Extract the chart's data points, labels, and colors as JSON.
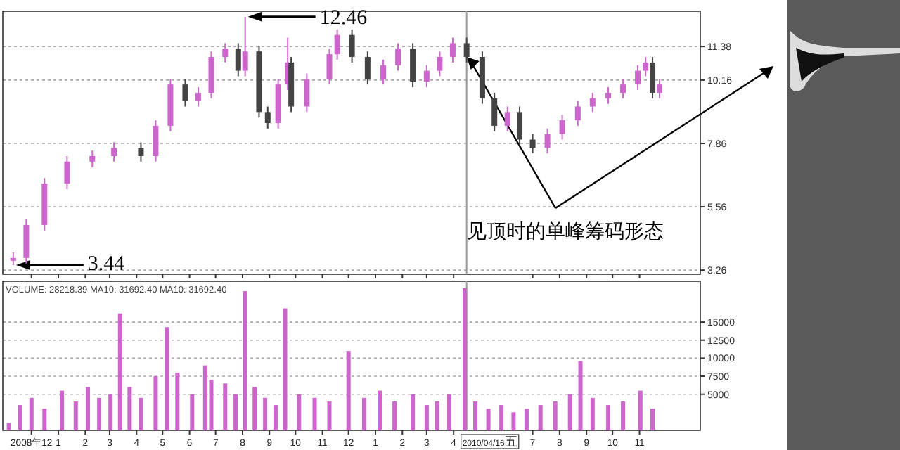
{
  "chart_data": [
    {
      "type": "candlestick",
      "xlim": [
        "2008-10-29",
        "2011-01-10"
      ],
      "ylim": [
        3.11,
        12.66
      ],
      "yticks": [
        3.26,
        5.56,
        7.86,
        10.16,
        11.38
      ],
      "grid": "y",
      "tick_labels": "y",
      "xticks": [
        {
          "value": "2008-12-01",
          "label": null
        },
        {
          "value": "2009-01-01",
          "label": null
        },
        {
          "value": "2009-02-01",
          "label": null
        },
        {
          "value": "2009-03-01",
          "label": null
        },
        {
          "value": "2009-04-01",
          "label": null
        },
        {
          "value": "2009-05-01",
          "label": null
        },
        {
          "value": "2009-06-01",
          "label": null
        },
        {
          "value": "2009-07-01",
          "label": null
        },
        {
          "value": "2009-08-01",
          "label": null
        },
        {
          "value": "2009-09-01",
          "label": null
        },
        {
          "value": "2009-10-01",
          "label": null
        },
        {
          "value": "2009-11-01",
          "label": null
        },
        {
          "value": "2009-12-01",
          "label": null
        },
        {
          "value": "2010-01-01",
          "label": null
        },
        {
          "value": "2010-02-01",
          "label": null
        },
        {
          "value": "2010-03-01",
          "label": null
        },
        {
          "value": "2010-04-01",
          "label": null
        },
        {
          "value": "2010-07-01",
          "label": null
        },
        {
          "value": "2010-08-01",
          "label": null
        },
        {
          "value": "2010-09-01",
          "label": null
        },
        {
          "value": "2010-10-01",
          "label": null
        },
        {
          "value": "2010-11-01",
          "label": null
        }
      ],
      "x": [
        "2008-11-10",
        "2008-11-25",
        "2008-12-16",
        "2009-01-11",
        "2009-02-09",
        "2009-03-06",
        "2009-04-06",
        "2009-04-23",
        "2009-05-10",
        "2009-05-27",
        "2009-06-11",
        "2009-06-26",
        "2009-07-12",
        "2009-07-27",
        "2009-08-04",
        "2009-08-20",
        "2009-08-30",
        "2009-09-11",
        "2009-09-22",
        "2009-09-26",
        "2009-10-14",
        "2009-11-09",
        "2009-11-18",
        "2009-12-05",
        "2009-12-23",
        "2010-01-10",
        "2010-01-27",
        "2010-02-13",
        "2010-03-01",
        "2010-03-16",
        "2010-03-31",
        "2010-04-16",
        "2010-05-04",
        "2010-05-18",
        "2010-06-02",
        "2010-06-16",
        "2010-07-01",
        "2010-07-18",
        "2010-08-04",
        "2010-08-22",
        "2010-09-08",
        "2010-09-26",
        "2010-10-13",
        "2010-10-30",
        "2010-11-08",
        "2010-11-16",
        "2010-11-24"
      ],
      "ohlc": [
        [
          3.6,
          3.9,
          3.44,
          3.7
        ],
        [
          3.7,
          5.1,
          3.5,
          4.9
        ],
        [
          4.9,
          6.6,
          4.7,
          6.4
        ],
        [
          6.4,
          7.4,
          6.2,
          7.2
        ],
        [
          7.2,
          7.6,
          7.0,
          7.4
        ],
        [
          7.4,
          7.9,
          7.2,
          7.7
        ],
        [
          7.7,
          7.9,
          7.2,
          7.4
        ],
        [
          7.4,
          8.7,
          7.2,
          8.5
        ],
        [
          8.5,
          10.2,
          8.3,
          10.0
        ],
        [
          10.0,
          10.2,
          9.2,
          9.4
        ],
        [
          9.4,
          9.9,
          9.2,
          9.7
        ],
        [
          9.7,
          11.2,
          9.5,
          11.0
        ],
        [
          11.0,
          11.5,
          10.8,
          11.3
        ],
        [
          11.3,
          11.5,
          10.3,
          10.5
        ],
        [
          10.5,
          12.46,
          10.3,
          11.2
        ],
        [
          11.2,
          11.4,
          8.8,
          9.0
        ],
        [
          9.0,
          9.2,
          8.4,
          8.6
        ],
        [
          8.6,
          10.2,
          8.4,
          10.0
        ],
        [
          10.0,
          11.7,
          9.8,
          10.8
        ],
        [
          10.8,
          11.0,
          9.0,
          9.2
        ],
        [
          9.2,
          10.4,
          9.0,
          10.2
        ],
        [
          10.2,
          11.3,
          10.0,
          11.1
        ],
        [
          11.1,
          12.0,
          10.9,
          11.8
        ],
        [
          11.8,
          12.0,
          10.8,
          11.0
        ],
        [
          11.0,
          11.2,
          10.0,
          10.2
        ],
        [
          10.2,
          10.9,
          10.0,
          10.7
        ],
        [
          10.7,
          11.5,
          10.5,
          11.3
        ],
        [
          11.3,
          11.5,
          9.9,
          10.1
        ],
        [
          10.1,
          10.7,
          9.9,
          10.5
        ],
        [
          10.5,
          11.2,
          10.3,
          11.0
        ],
        [
          11.0,
          11.7,
          10.8,
          11.5
        ],
        [
          11.5,
          11.7,
          10.8,
          11.0
        ],
        [
          11.0,
          11.2,
          9.3,
          9.5
        ],
        [
          9.5,
          9.7,
          8.3,
          8.5
        ],
        [
          8.5,
          9.2,
          8.3,
          9.0
        ],
        [
          9.0,
          9.2,
          7.8,
          8.0
        ],
        [
          8.0,
          8.2,
          7.5,
          7.7
        ],
        [
          7.7,
          8.4,
          7.5,
          8.2
        ],
        [
          8.2,
          8.9,
          8.0,
          8.7
        ],
        [
          8.7,
          9.4,
          8.5,
          9.2
        ],
        [
          9.2,
          9.7,
          9.0,
          9.5
        ],
        [
          9.5,
          9.9,
          9.3,
          9.7
        ],
        [
          9.7,
          10.2,
          9.5,
          10.0
        ],
        [
          10.0,
          10.7,
          9.8,
          10.5
        ],
        [
          10.5,
          11.0,
          10.3,
          10.8
        ],
        [
          10.8,
          11.0,
          9.5,
          9.7
        ],
        [
          9.7,
          10.2,
          9.5,
          10.0
        ]
      ],
      "colors": [
        "#cc66cc",
        "#cc66cc",
        "#cc66cc",
        "#cc66cc",
        "#cc66cc",
        "#cc66cc",
        "#444444",
        "#cc66cc",
        "#cc66cc",
        "#444444",
        "#cc66cc",
        "#cc66cc",
        "#cc66cc",
        "#444444",
        "#cc66cc",
        "#444444",
        "#444444",
        "#cc66cc",
        "#cc66cc",
        "#444444",
        "#cc66cc",
        "#cc66cc",
        "#cc66cc",
        "#444444",
        "#444444",
        "#cc66cc",
        "#cc66cc",
        "#444444",
        "#cc66cc",
        "#cc66cc",
        "#cc66cc",
        "#444444",
        "#444444",
        "#444444",
        "#cc66cc",
        "#444444",
        "#444444",
        "#cc66cc",
        "#cc66cc",
        "#cc66cc",
        "#cc66cc",
        "#cc66cc",
        "#cc66cc",
        "#cc66cc",
        "#cc66cc",
        "#444444",
        "#cc66cc"
      ],
      "ref_lines": [
        {
          "axis": "x",
          "value": "2010-04-16",
          "color": "#999999"
        }
      ],
      "annotations": [
        {
          "text": "12.46",
          "x": "2009-08-04",
          "y": 12.46
        },
        {
          "text": "3.44",
          "x": "2008-11-10",
          "y": 3.44
        },
        {
          "text": "见顶时的单峰筹码形态",
          "x": "2010-04-16",
          "y": 11.0
        }
      ]
    },
    {
      "type": "bar",
      "title": "VOLUME: 28218.39  MA10: 31692.40  MA10: 31692.40",
      "color": "#cc66cc",
      "xlim": [
        "2008-10-29",
        "2011-01-10"
      ],
      "ylim": [
        0,
        20660
      ],
      "yticks": [
        5000,
        7500,
        10000,
        12500,
        15000
      ],
      "grid": "y",
      "xticks": [
        {
          "value": "2008-12-01",
          "label": "2008年12"
        },
        {
          "value": "2009-01-01",
          "label": "1"
        },
        {
          "value": "2009-02-01",
          "label": "2"
        },
        {
          "value": "2009-03-01",
          "label": "3"
        },
        {
          "value": "2009-04-01",
          "label": "4"
        },
        {
          "value": "2009-05-01",
          "label": "5"
        },
        {
          "value": "2009-06-01",
          "label": "6"
        },
        {
          "value": "2009-07-01",
          "label": "7"
        },
        {
          "value": "2009-08-01",
          "label": "8"
        },
        {
          "value": "2009-09-01",
          "label": "9"
        },
        {
          "value": "2009-10-01",
          "label": "10"
        },
        {
          "value": "2009-11-01",
          "label": "11"
        },
        {
          "value": "2009-12-01",
          "label": "12"
        },
        {
          "value": "2010-01-01",
          "label": "1"
        },
        {
          "value": "2010-02-01",
          "label": "2"
        },
        {
          "value": "2010-03-01",
          "label": "3"
        },
        {
          "value": "2010-04-01",
          "label": "4"
        },
        {
          "value": "2010-07-01",
          "label": "7"
        },
        {
          "value": "2010-08-01",
          "label": "8"
        },
        {
          "value": "2010-09-01",
          "label": "9"
        },
        {
          "value": "2010-10-01",
          "label": "10"
        },
        {
          "value": "2010-11-01",
          "label": "11"
        }
      ],
      "x": [
        "2008-11-05",
        "2008-11-18",
        "2008-12-01",
        "2008-12-16",
        "2009-01-05",
        "2009-01-21",
        "2009-02-04",
        "2009-02-17",
        "2009-03-02",
        "2009-03-13",
        "2009-03-24",
        "2009-04-06",
        "2009-04-23",
        "2009-05-06",
        "2009-05-18",
        "2009-06-04",
        "2009-06-19",
        "2009-06-26",
        "2009-07-12",
        "2009-07-24",
        "2009-08-04",
        "2009-08-15",
        "2009-08-27",
        "2009-09-08",
        "2009-09-19",
        "2009-10-05",
        "2009-10-23",
        "2009-11-09",
        "2009-12-01",
        "2009-12-19",
        "2010-01-06",
        "2010-01-23",
        "2010-02-13",
        "2010-03-01",
        "2010-03-13",
        "2010-03-27",
        "2010-04-14",
        "2010-04-26",
        "2010-05-11",
        "2010-05-26",
        "2010-06-09",
        "2010-06-24",
        "2010-07-10",
        "2010-07-27",
        "2010-08-13",
        "2010-08-25",
        "2010-09-08",
        "2010-09-26",
        "2010-10-13",
        "2010-11-02",
        "2010-11-16"
      ],
      "values": [
        1000,
        3500,
        4500,
        3000,
        5500,
        4000,
        6000,
        4500,
        5000,
        16200,
        6000,
        4500,
        7500,
        14300,
        8000,
        5000,
        9000,
        7000,
        6500,
        5000,
        19300,
        6000,
        4500,
        3500,
        16900,
        5000,
        4500,
        4000,
        11000,
        4500,
        5500,
        4000,
        5000,
        3500,
        4000,
        5000,
        19700,
        4000,
        3000,
        3500,
        2500,
        3000,
        3500,
        4000,
        5000,
        9600,
        4500,
        3500,
        4000,
        5500,
        3000
      ],
      "ref_lines": [
        {
          "axis": "x",
          "value": "2010-04-16",
          "label": "2010/04/16五",
          "color": "#999999"
        }
      ]
    }
  ]
}
